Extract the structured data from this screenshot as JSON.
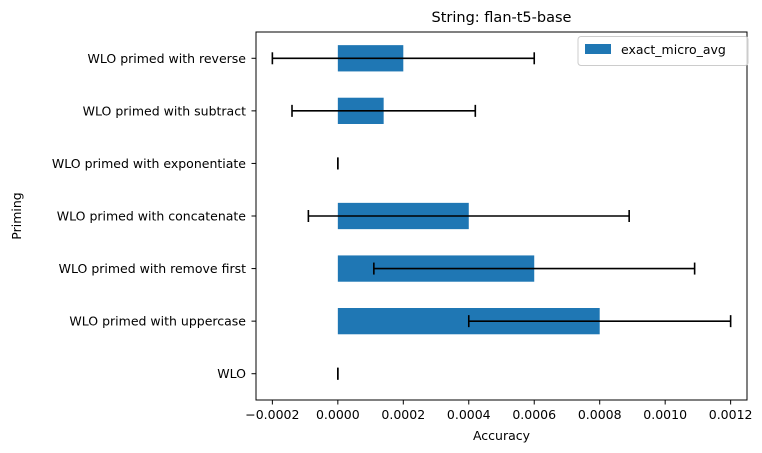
{
  "chart_data": {
    "type": "bar",
    "orientation": "horizontal",
    "title": "String: flan-t5-base",
    "xlabel": "Accuracy",
    "ylabel": "Priming",
    "categories": [
      "WLO",
      "WLO primed with uppercase",
      "WLO primed with remove first",
      "WLO primed with concatenate",
      "WLO primed with exponentiate",
      "WLO primed with subtract",
      "WLO primed with reverse"
    ],
    "series": [
      {
        "name": "exact_micro_avg",
        "values": [
          0.0,
          0.0008,
          0.0006,
          0.0004,
          0.0,
          0.00014,
          0.0002
        ],
        "err_low": [
          0.0,
          0.0004,
          0.00011,
          -9e-05,
          0.0,
          -0.00014,
          -0.0002
        ],
        "err_high": [
          0.0,
          0.0012,
          0.00109,
          0.00089,
          0.0,
          0.00042,
          0.0006
        ],
        "color": "#1f77b4"
      }
    ],
    "xlim": [
      -0.00025,
      0.00125
    ],
    "xticks": [
      -0.0002,
      0.0,
      0.0002,
      0.0004,
      0.0006,
      0.0008,
      0.001,
      0.0012
    ],
    "xtick_labels": [
      "−0.0002",
      "0.0000",
      "0.0002",
      "0.0004",
      "0.0006",
      "0.0008",
      "0.0010",
      "0.0012"
    ],
    "grid": false,
    "legend_position": "top-right",
    "error_bar_color": "#000000"
  }
}
